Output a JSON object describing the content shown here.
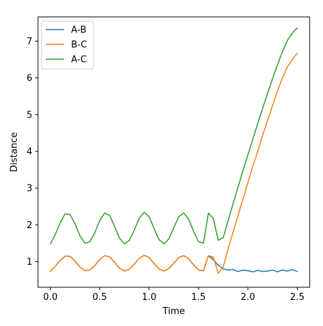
{
  "chart_data": {
    "type": "line",
    "xlabel": "Time",
    "ylabel": "Distance",
    "xlim": [
      -0.125,
      2.625
    ],
    "ylim": [
      0.3,
      7.66
    ],
    "xticks": [
      0.0,
      0.5,
      1.0,
      1.5,
      2.0,
      2.5
    ],
    "xtick_labels": [
      "0.0",
      "0.5",
      "1.0",
      "1.5",
      "2.0",
      "2.5"
    ],
    "yticks": [
      1,
      2,
      3,
      4,
      5,
      6,
      7
    ],
    "ytick_labels": [
      "1",
      "2",
      "3",
      "4",
      "5",
      "6",
      "7"
    ],
    "legend": {
      "placement": "top-left"
    },
    "grid": false,
    "series": [
      {
        "name": "A-B",
        "color": "#1f77b4",
        "x": [
          0.0,
          0.05,
          0.1,
          0.15,
          0.2,
          0.25,
          0.3,
          0.35,
          0.4,
          0.45,
          0.5,
          0.55,
          0.6,
          0.65,
          0.7,
          0.75,
          0.8,
          0.85,
          0.9,
          0.95,
          1.0,
          1.05,
          1.1,
          1.15,
          1.2,
          1.25,
          1.3,
          1.35,
          1.4,
          1.45,
          1.5,
          1.55,
          1.6,
          1.65,
          1.7,
          1.75,
          1.8,
          1.85,
          1.9,
          1.95,
          2.0,
          2.05,
          2.1,
          2.15,
          2.2,
          2.25,
          2.3,
          2.35,
          2.4,
          2.45,
          2.5
        ],
        "y": [
          0.74,
          0.87,
          1.03,
          1.15,
          1.14,
          1.01,
          0.85,
          0.75,
          0.77,
          0.89,
          1.06,
          1.16,
          1.13,
          0.98,
          0.82,
          0.74,
          0.79,
          0.93,
          1.09,
          1.17,
          1.11,
          0.95,
          0.8,
          0.74,
          0.81,
          0.96,
          1.11,
          1.16,
          1.08,
          0.91,
          0.77,
          0.75,
          1.16,
          1.05,
          0.9,
          0.8,
          0.77,
          0.78,
          0.73,
          0.77,
          0.75,
          0.72,
          0.76,
          0.73,
          0.74,
          0.77,
          0.72,
          0.77,
          0.74,
          0.78,
          0.73
        ]
      },
      {
        "name": "B-C",
        "color": "#ff7f0e",
        "x": [
          0.0,
          0.05,
          0.1,
          0.15,
          0.2,
          0.25,
          0.3,
          0.35,
          0.4,
          0.45,
          0.5,
          0.55,
          0.6,
          0.65,
          0.7,
          0.75,
          0.8,
          0.85,
          0.9,
          0.95,
          1.0,
          1.05,
          1.1,
          1.15,
          1.2,
          1.25,
          1.3,
          1.35,
          1.4,
          1.45,
          1.5,
          1.55,
          1.6,
          1.65,
          1.7,
          1.75,
          1.8,
          1.85,
          1.9,
          1.95,
          2.0,
          2.05,
          2.1,
          2.15,
          2.2,
          2.25,
          2.3,
          2.35,
          2.4,
          2.45,
          2.5
        ],
        "y": [
          0.74,
          0.87,
          1.03,
          1.15,
          1.14,
          1.01,
          0.85,
          0.75,
          0.77,
          0.89,
          1.06,
          1.16,
          1.13,
          0.98,
          0.82,
          0.74,
          0.79,
          0.93,
          1.09,
          1.17,
          1.11,
          0.95,
          0.8,
          0.74,
          0.81,
          0.96,
          1.11,
          1.16,
          1.08,
          0.91,
          0.77,
          0.75,
          1.16,
          1.12,
          0.68,
          0.85,
          1.35,
          1.8,
          2.25,
          2.7,
          3.15,
          3.6,
          4.0,
          4.45,
          4.85,
          5.25,
          5.65,
          6.0,
          6.3,
          6.5,
          6.67
        ]
      },
      {
        "name": "A-C",
        "color": "#2ca02c",
        "x": [
          0.0,
          0.05,
          0.1,
          0.15,
          0.2,
          0.25,
          0.3,
          0.35,
          0.4,
          0.45,
          0.5,
          0.55,
          0.6,
          0.65,
          0.7,
          0.75,
          0.8,
          0.85,
          0.9,
          0.95,
          1.0,
          1.05,
          1.1,
          1.15,
          1.2,
          1.25,
          1.3,
          1.35,
          1.4,
          1.45,
          1.5,
          1.55,
          1.6,
          1.65,
          1.7,
          1.75,
          1.8,
          1.85,
          1.9,
          1.95,
          2.0,
          2.05,
          2.1,
          2.15,
          2.2,
          2.25,
          2.3,
          2.35,
          2.4,
          2.45,
          2.5
        ],
        "y": [
          1.48,
          1.74,
          2.06,
          2.3,
          2.28,
          2.02,
          1.7,
          1.5,
          1.54,
          1.78,
          2.12,
          2.32,
          2.26,
          1.96,
          1.64,
          1.48,
          1.58,
          1.86,
          2.18,
          2.34,
          2.22,
          1.9,
          1.6,
          1.48,
          1.62,
          1.92,
          2.22,
          2.32,
          2.16,
          1.82,
          1.54,
          1.5,
          2.32,
          2.17,
          1.58,
          1.65,
          2.12,
          2.58,
          3.02,
          3.48,
          3.9,
          4.34,
          4.76,
          5.18,
          5.58,
          5.98,
          6.36,
          6.72,
          7.02,
          7.22,
          7.36
        ]
      }
    ]
  }
}
